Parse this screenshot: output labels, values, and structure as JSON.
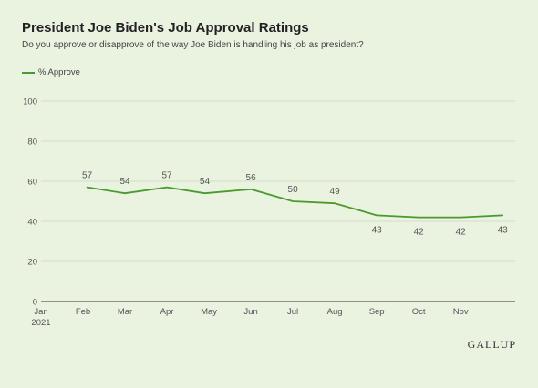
{
  "title": "President Joe Biden's Job Approval Ratings",
  "subtitle": "Do you approve or disapprove of the way Joe Biden is handling his job as president?",
  "logo": "GALLUP",
  "colors": {
    "series": "#4a9a2e",
    "background": "#eaf2e0",
    "grid": "#d3ddc8",
    "axis": "#333333",
    "text": "#555555"
  },
  "chart_data": {
    "type": "line",
    "title": "President Joe Biden's Job Approval Ratings",
    "subtitle": "Do you approve or disapprove of the way Joe Biden is handling his job as president?",
    "x_tick_labels": [
      "Jan",
      "Feb",
      "Mar",
      "Apr",
      "May",
      "Jun",
      "Jul",
      "Aug",
      "Sep",
      "Oct",
      "Nov"
    ],
    "x_year_label": "2021",
    "y_ticks": [
      0,
      20,
      40,
      60,
      80,
      100
    ],
    "ylim": [
      0,
      100
    ],
    "grid": true,
    "legend_position": "top-left",
    "series": [
      {
        "name": "% Approve",
        "x": [
          1.1,
          2.0,
          3.0,
          3.9,
          5.0,
          6.0,
          7.0,
          8.0,
          9.0,
          10.0,
          11.0
        ],
        "values": [
          57,
          54,
          57,
          54,
          56,
          50,
          49,
          43,
          42,
          42,
          43
        ],
        "labels": [
          "57",
          "54",
          "57",
          "54",
          "56",
          "50",
          "49",
          "43",
          "42",
          "42",
          "43"
        ],
        "label_side": [
          "above",
          "above",
          "above",
          "above",
          "above",
          "above",
          "above",
          "below",
          "below",
          "below",
          "below"
        ]
      }
    ]
  }
}
